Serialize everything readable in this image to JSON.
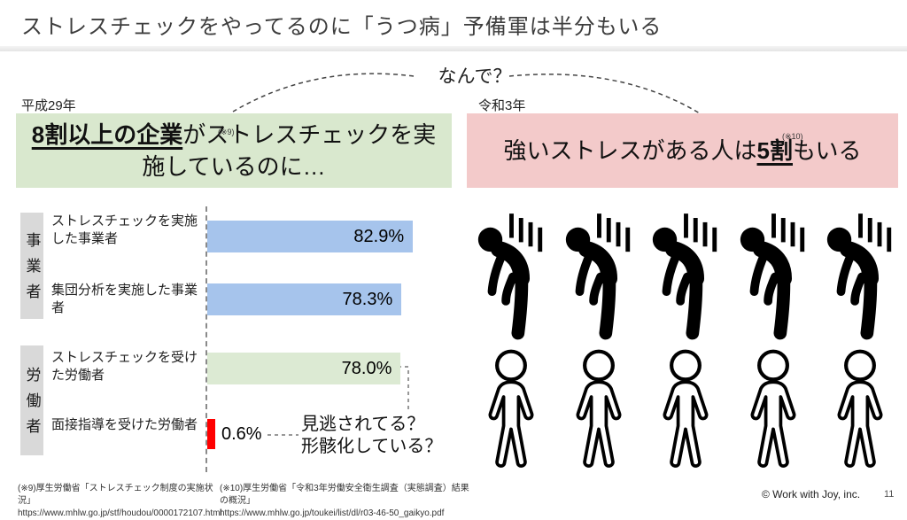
{
  "slide": {
    "title": "ストレスチェックをやってるのに「うつ病」予備軍は半分もいる",
    "question_label": "なんで？",
    "page_number": "11",
    "copyright": "© Work with Joy, inc."
  },
  "comparison": {
    "left": {
      "year": "平成29年",
      "ref": "(※9)",
      "emphasis": "8割以上の企業",
      "rest": "がストレスチェックを実施しているのに…",
      "bg_color": "#d9e8ce"
    },
    "right": {
      "year": "令和3年",
      "ref": "(※10)",
      "prefix": "強いストレスがある人は",
      "emphasis": "5割",
      "suffix": "もいる",
      "bg_color": "#f3caca"
    }
  },
  "chart_data": {
    "type": "bar",
    "orientation": "horizontal",
    "unit": "%",
    "xlim": [
      0,
      100
    ],
    "groups": [
      {
        "category": "事業者",
        "rows": [
          {
            "label": "ストレスチェックを実施した事業者",
            "value": 82.9,
            "display": "82.9%",
            "color": "#a6c4ec"
          },
          {
            "label": "集団分析を実施した事業者",
            "value": 78.3,
            "display": "78.3%",
            "color": "#a6c4ec"
          }
        ]
      },
      {
        "category": "労働者",
        "rows": [
          {
            "label": "ストレスチェックを受けた労働者",
            "value": 78.0,
            "display": "78.0%",
            "color": "#dcead3"
          },
          {
            "label": "面接指導を受けた労働者",
            "value": 0.6,
            "display": "0.6%",
            "color": "#ff0000"
          }
        ]
      }
    ],
    "annotation": {
      "line1": "見逃されてる？",
      "line2": "形骸化している？"
    }
  },
  "figures": {
    "stressed_count": 5,
    "normal_count": 5
  },
  "footnotes": [
    {
      "text": "(※9)厚生労働省「ストレスチェック制度の実施状況」",
      "url": "https://www.mhlw.go.jp/stf/houdou/0000172107.html"
    },
    {
      "text": "(※10)厚生労働省「令和3年労働安全衛生調査（実態調査）結果の概況」",
      "url": "https://www.mhlw.go.jp/toukei/list/dl/r03-46-50_gaikyo.pdf"
    }
  ]
}
